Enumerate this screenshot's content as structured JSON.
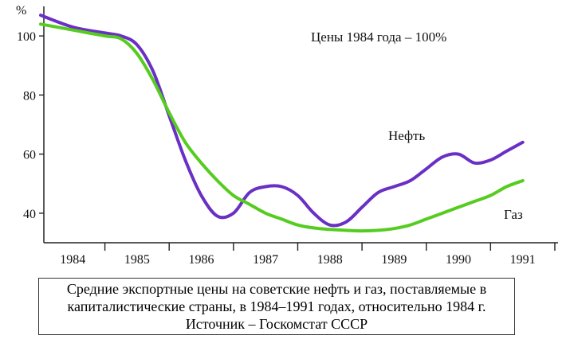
{
  "chart_data": {
    "type": "line",
    "ylabel": "%",
    "annotation": "Цены 1984 года – 100%",
    "x_ticks": [
      "1984",
      "1985",
      "1986",
      "1987",
      "1988",
      "1989",
      "1990",
      "1991"
    ],
    "y_ticks": [
      40,
      60,
      80,
      100
    ],
    "xlim": [
      1983.55,
      1991.55
    ],
    "ylim": [
      30,
      110
    ],
    "grid": false,
    "series": [
      {
        "name": "Нефть",
        "color": "#6a2fc4",
        "x": [
          1983.5,
          1984.0,
          1984.5,
          1984.75,
          1985.0,
          1985.25,
          1985.5,
          1985.75,
          1986.0,
          1986.25,
          1986.5,
          1986.75,
          1987.0,
          1987.25,
          1987.5,
          1987.75,
          1988.0,
          1988.25,
          1988.5,
          1988.75,
          1989.0,
          1989.25,
          1989.5,
          1989.75,
          1990.0,
          1990.25,
          1990.5,
          1990.75,
          1991.0
        ],
        "y": [
          107,
          103,
          101,
          100,
          97,
          88,
          73,
          58,
          46,
          39,
          40,
          47,
          49,
          49,
          46,
          40,
          36,
          37,
          42,
          47,
          49,
          51,
          55,
          59,
          60,
          57,
          58,
          61,
          64
        ]
      },
      {
        "name": "Газ",
        "color": "#55cc1f",
        "x": [
          1983.5,
          1984.0,
          1984.5,
          1984.75,
          1985.0,
          1985.25,
          1985.5,
          1985.75,
          1986.0,
          1986.25,
          1986.5,
          1986.75,
          1987.0,
          1987.25,
          1987.5,
          1987.75,
          1988.0,
          1988.25,
          1988.5,
          1988.75,
          1989.0,
          1989.25,
          1989.5,
          1989.75,
          1990.0,
          1990.25,
          1990.5,
          1990.75,
          1991.0
        ],
        "y": [
          104,
          102,
          100,
          99,
          94,
          85,
          74,
          64,
          57,
          51,
          46,
          43,
          40,
          38,
          36,
          35,
          34.5,
          34.2,
          34,
          34.2,
          34.8,
          36,
          38,
          40,
          42,
          44,
          46,
          49,
          51
        ]
      }
    ]
  },
  "caption": {
    "line1": "Средние экспортные цены на советские нефть и газ, поставляемые в",
    "line2": "капиталистические страны, в 1984–1991 годах, относительно 1984 г.",
    "line3": "Источник – Госкомстат СССР"
  }
}
